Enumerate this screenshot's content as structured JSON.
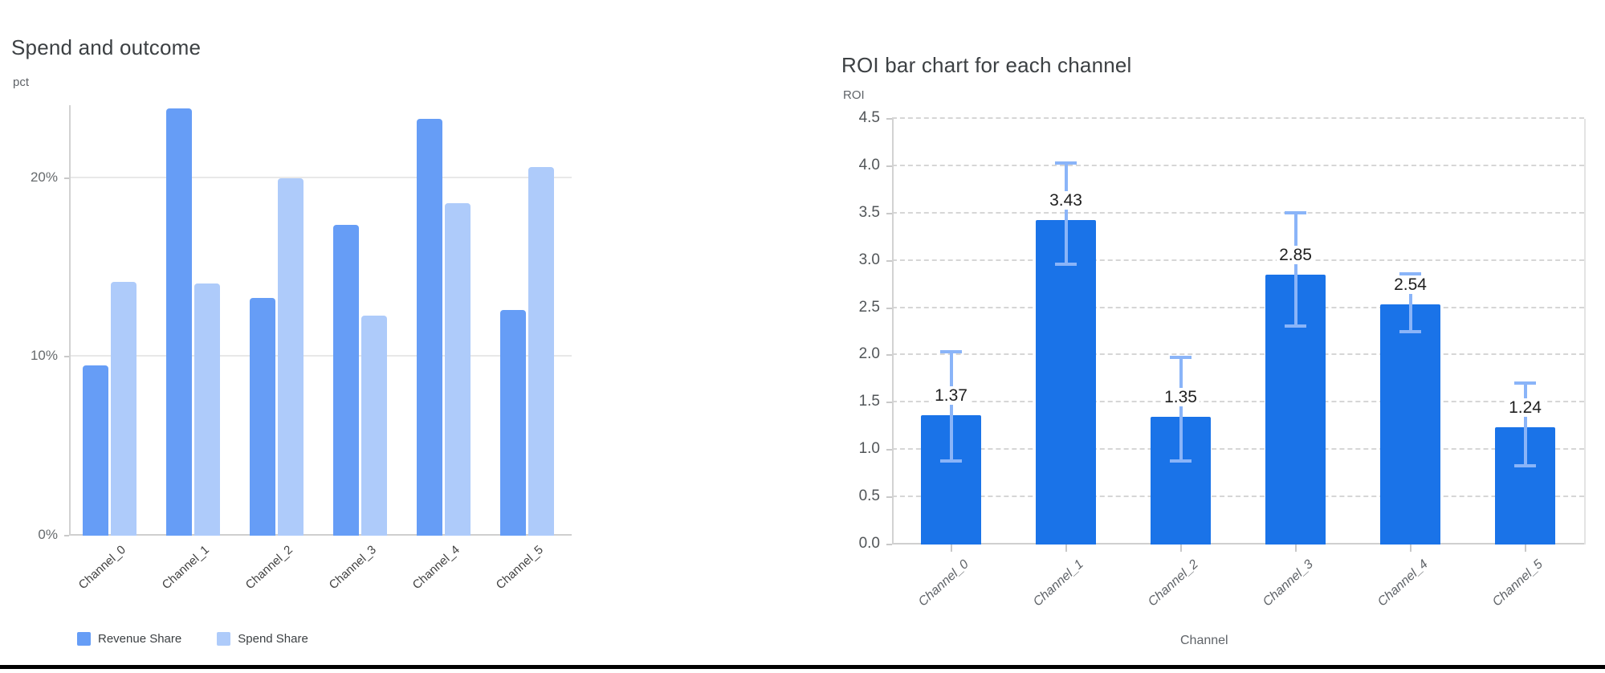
{
  "window": {
    "background": "#ffffff"
  },
  "chart_data": [
    {
      "type": "bar",
      "title": "Spend and outcome",
      "ylabel": "pct",
      "xlabel": "",
      "categories": [
        "Channel_0",
        "Channel_1",
        "Channel_2",
        "Channel_3",
        "Channel_4",
        "Channel_5"
      ],
      "series": [
        {
          "name": "Revenue Share",
          "color": "#669df6",
          "values": [
            9.5,
            23.9,
            13.3,
            17.4,
            23.3,
            12.6
          ]
        },
        {
          "name": "Spend Share",
          "color": "#aecbfa",
          "values": [
            14.2,
            14.1,
            20.0,
            12.3,
            18.6,
            20.6
          ]
        }
      ],
      "value_unit": "percent",
      "yticks": [
        {
          "value": 0,
          "label": "0%"
        },
        {
          "value": 10,
          "label": "10%"
        },
        {
          "value": 20,
          "label": "20%"
        }
      ],
      "ylim": [
        0,
        24.1
      ],
      "grid": "solid-horizontal",
      "legend_position": "bottom-left"
    },
    {
      "type": "bar",
      "title": "ROI bar chart for each channel",
      "ylabel": "ROI",
      "xlabel": "Channel",
      "categories": [
        "Channel_0",
        "Channel_1",
        "Channel_2",
        "Channel_3",
        "Channel_4",
        "Channel_5"
      ],
      "values": [
        1.37,
        3.43,
        1.35,
        2.85,
        2.54,
        1.24
      ],
      "bar_labels": [
        "1.37",
        "3.43",
        "1.35",
        "2.85",
        "2.54",
        "1.24"
      ],
      "error_low": [
        0.88,
        2.96,
        0.88,
        2.31,
        2.25,
        0.83
      ],
      "error_high": [
        2.04,
        4.03,
        1.98,
        3.51,
        2.86,
        1.71
      ],
      "bar_color": "#1a73e8",
      "error_color": "#8ab4f8",
      "yticks": [
        {
          "value": 0.0,
          "label": "0.0"
        },
        {
          "value": 0.5,
          "label": "0.5"
        },
        {
          "value": 1.0,
          "label": "1.0"
        },
        {
          "value": 1.5,
          "label": "1.5"
        },
        {
          "value": 2.0,
          "label": "2.0"
        },
        {
          "value": 2.5,
          "label": "2.5"
        },
        {
          "value": 3.0,
          "label": "3.0"
        },
        {
          "value": 3.5,
          "label": "3.5"
        },
        {
          "value": 4.0,
          "label": "4.0"
        },
        {
          "value": 4.5,
          "label": "4.5"
        }
      ],
      "ylim": [
        0,
        4.5
      ],
      "grid": "dashed-horizontal",
      "legend_position": "none"
    }
  ]
}
